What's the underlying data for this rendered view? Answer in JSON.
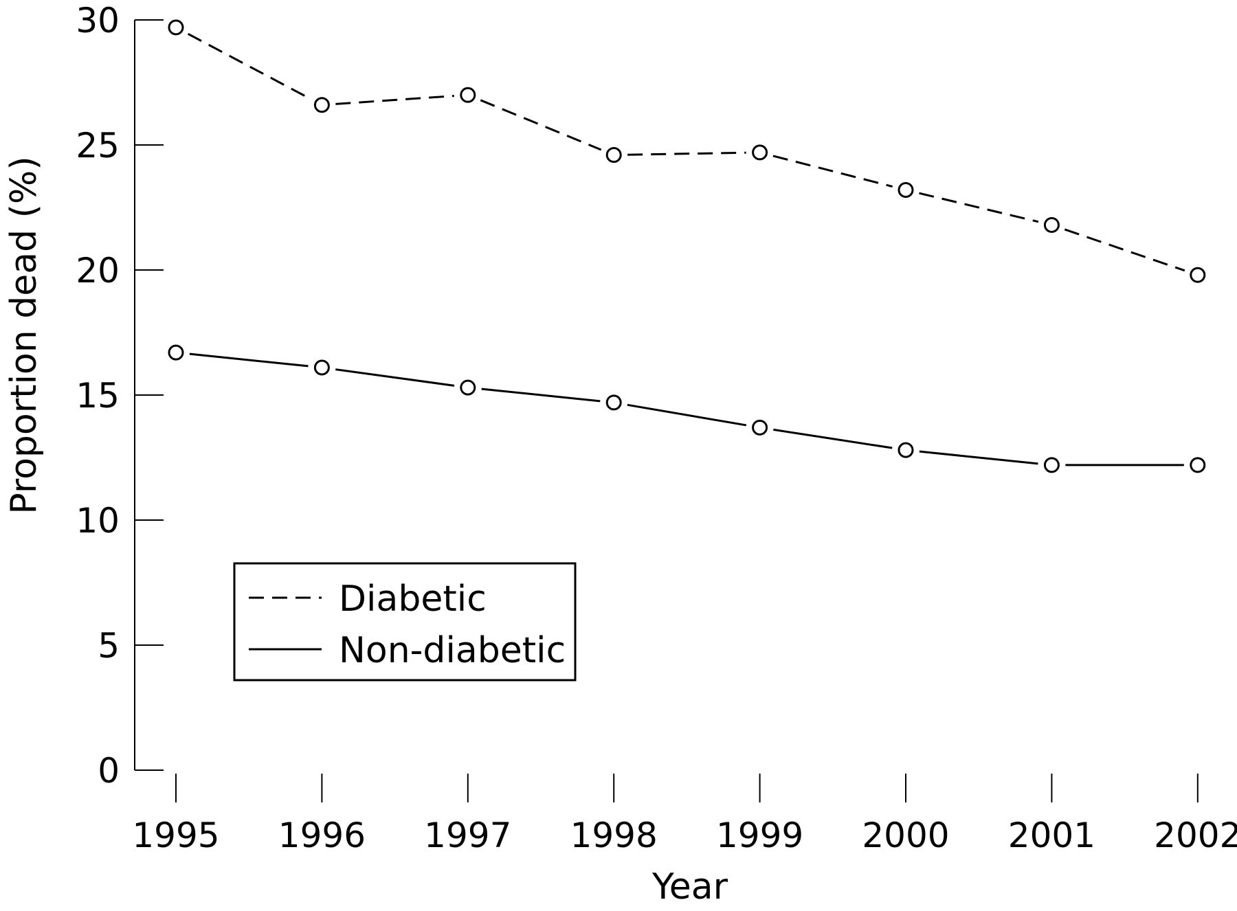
{
  "chart_data": {
    "type": "line",
    "xlabel": "Year",
    "ylabel": "Proportion dead (%)",
    "categories": [
      "1995",
      "1996",
      "1997",
      "1998",
      "1999",
      "2000",
      "2001",
      "2002"
    ],
    "yticks": [
      "0",
      "5",
      "10",
      "15",
      "20",
      "25",
      "30"
    ],
    "ylim": [
      0,
      30
    ],
    "grid": false,
    "legend_position": "bottom-left",
    "series": [
      {
        "name": "Diabetic",
        "style": "dashed",
        "values": [
          29.7,
          26.6,
          27.0,
          24.6,
          24.7,
          23.2,
          21.8,
          19.8
        ]
      },
      {
        "name": "Non-diabetic",
        "style": "solid",
        "values": [
          16.7,
          16.1,
          15.3,
          14.7,
          13.7,
          12.8,
          12.2,
          12.2
        ]
      }
    ]
  }
}
